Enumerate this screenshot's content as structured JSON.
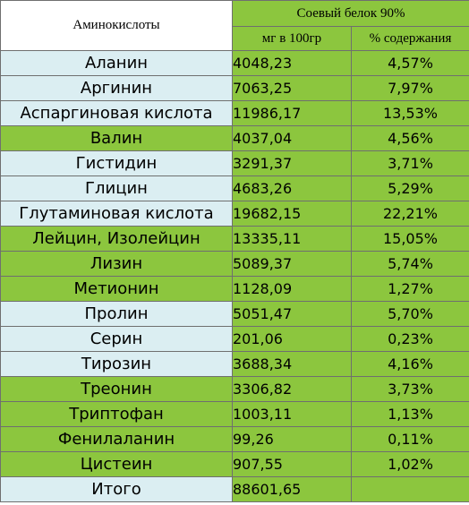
{
  "header": {
    "amino_label": "Аминокислоты",
    "product_label": "Соевый  белок 90%",
    "col_mg": "мг в 100гр",
    "col_pct": "% содержания"
  },
  "rows": [
    {
      "name": "Аланин",
      "mg": "4048,23",
      "pct": "4,57%"
    },
    {
      "name": "Аргинин",
      "mg": "7063,25",
      "pct": "7,97%"
    },
    {
      "name": "Аспаргиновая кислота",
      "mg": "11986,17",
      "pct": "13,53%"
    },
    {
      "name": "Валин",
      "mg": "4037,04",
      "pct": "4,56%"
    },
    {
      "name": "Гистидин",
      "mg": "3291,37",
      "pct": "3,71%"
    },
    {
      "name": "Глицин",
      "mg": "4683,26",
      "pct": "5,29%"
    },
    {
      "name": "Глутаминовая кислота",
      "mg": "19682,15",
      "pct": "22,21%"
    },
    {
      "name": "Лейцин, Изолейцин",
      "mg": "13335,11",
      "pct": "15,05%"
    },
    {
      "name": "Лизин",
      "mg": "5089,37",
      "pct": "5,74%"
    },
    {
      "name": "Метионин",
      "mg": "1128,09",
      "pct": "1,27%"
    },
    {
      "name": "Пролин",
      "mg": "5051,47",
      "pct": "5,70%"
    },
    {
      "name": "Серин",
      "mg": "201,06",
      "pct": "0,23%"
    },
    {
      "name": "Тирозин",
      "mg": "3688,34",
      "pct": "4,16%"
    },
    {
      "name": "Треонин",
      "mg": "3306,82",
      "pct": "3,73%"
    },
    {
      "name": "Триптофан",
      "mg": "1003,11",
      "pct": "1,13%"
    },
    {
      "name": "Фенилаланин",
      "mg": "99,26",
      "pct": "0,11%"
    },
    {
      "name": "Цистеин",
      "mg": "907,55",
      "pct": "1,02%"
    },
    {
      "name": "Итого",
      "mg": "88601,65",
      "pct": ""
    }
  ],
  "colors": {
    "green": "#8cc63e",
    "light_blue": "#dbeef2"
  }
}
